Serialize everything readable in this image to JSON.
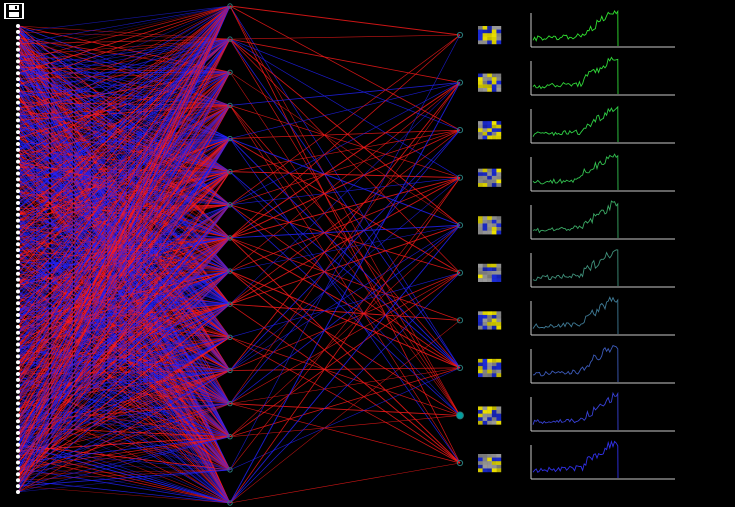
{
  "app": {
    "toolbar": {
      "save_icon": "floppy-disk-icon"
    }
  },
  "network": {
    "layer_sizes": [
      80,
      16,
      10
    ],
    "highlighted_output_index": 8,
    "colors": {
      "background": "#000000",
      "positive_weight": "#ff1a1a",
      "negative_weight": "#2222ff",
      "input_node": "#ffffff",
      "hidden_node": "#2a7a7a",
      "output_node": "#2a7a7a",
      "output_node_active": "#00a0a0",
      "patch_base": "#9a9a9a",
      "patch_pos": "#f2e600",
      "patch_neg": "#1c2cd8"
    }
  },
  "histograms": {
    "count": 10,
    "axis_color": "#c8c8c8",
    "line_colors": [
      "#30e030",
      "#30d838",
      "#2fcf45",
      "#32c04f",
      "#3aa864",
      "#3f907a",
      "#3f7a95",
      "#3c5ab8",
      "#3740d4",
      "#3030e8"
    ]
  }
}
